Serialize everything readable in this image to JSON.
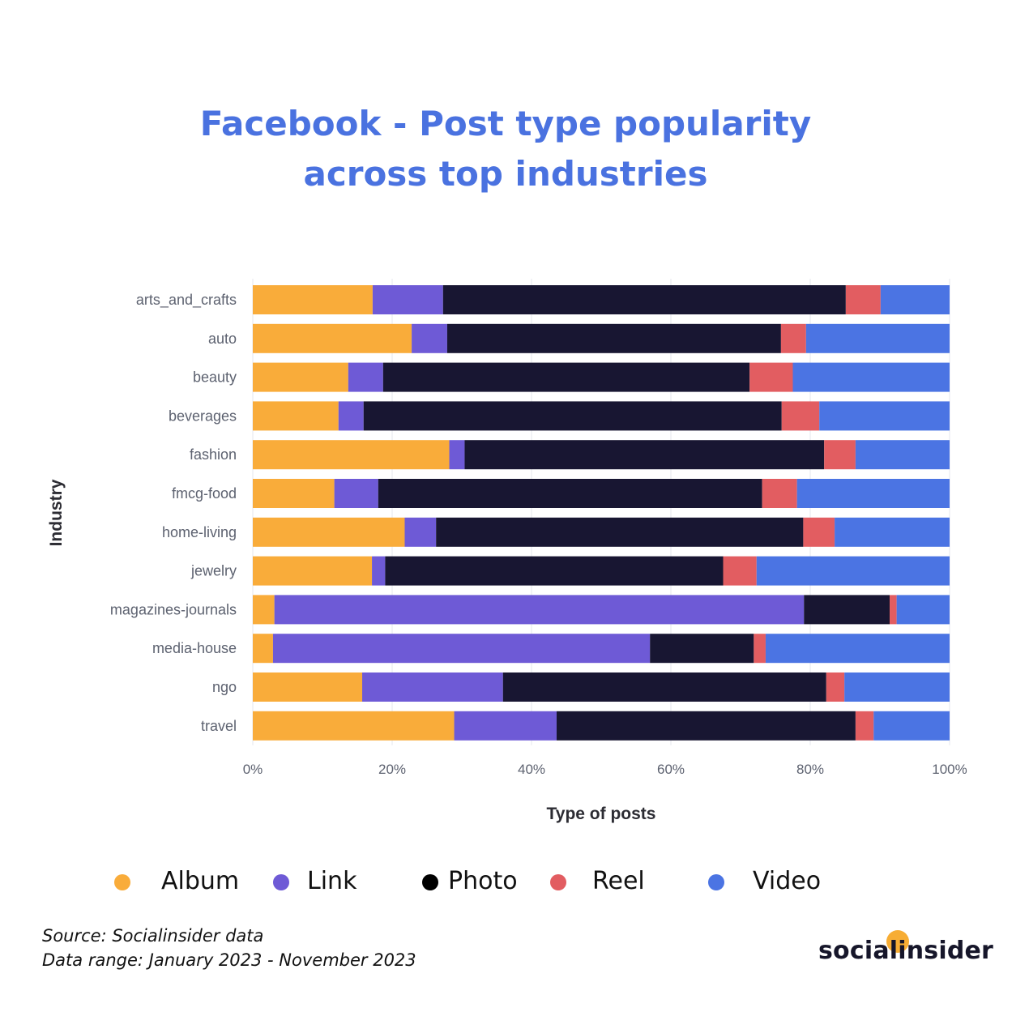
{
  "title_lines": [
    "Facebook - Post type popularity",
    "across top industries"
  ],
  "chart_data": {
    "type": "bar",
    "orientation": "horizontal",
    "stacked": true,
    "ylabel": "Industry",
    "xlabel": "Type of posts",
    "xlim": [
      0,
      100
    ],
    "x_ticks": [
      "0%",
      "20%",
      "40%",
      "60%",
      "80%",
      "100%"
    ],
    "grid": true,
    "categories": [
      "arts_and_crafts",
      "auto",
      "beauty",
      "beverages",
      "fashion",
      "fmcg-food",
      "home-living",
      "jewelry",
      "magazines-journals",
      "media-house",
      "ngo",
      "travel"
    ],
    "series": [
      {
        "name": "Album",
        "color": "#f9ac3a",
        "values": [
          17.2,
          22.8,
          13.7,
          12.3,
          28.2,
          11.7,
          21.8,
          17.1,
          3.1,
          2.9,
          15.7,
          28.9
        ]
      },
      {
        "name": "Link",
        "color": "#6e5ad6",
        "values": [
          10.1,
          5.1,
          5.0,
          3.6,
          2.2,
          6.3,
          4.5,
          1.9,
          76.0,
          54.1,
          20.2,
          14.7
        ]
      },
      {
        "name": "Photo",
        "color": "#181632",
        "values": [
          57.8,
          47.9,
          52.6,
          60.0,
          51.6,
          55.1,
          52.7,
          48.5,
          12.3,
          14.9,
          46.4,
          42.9
        ]
      },
      {
        "name": "Reel",
        "color": "#e25d61",
        "values": [
          5.0,
          3.6,
          6.2,
          5.4,
          4.5,
          5.0,
          4.5,
          4.8,
          1.0,
          1.7,
          2.6,
          2.6
        ]
      },
      {
        "name": "Video",
        "color": "#4b74e3",
        "values": [
          9.9,
          20.6,
          22.5,
          18.7,
          13.5,
          21.9,
          16.5,
          27.7,
          7.6,
          26.4,
          15.1,
          10.9
        ]
      }
    ]
  },
  "footer": {
    "source": "Source: Socialinsider data",
    "range": "Data range: January 2023 - November 2023"
  },
  "logo": "socialinsider"
}
